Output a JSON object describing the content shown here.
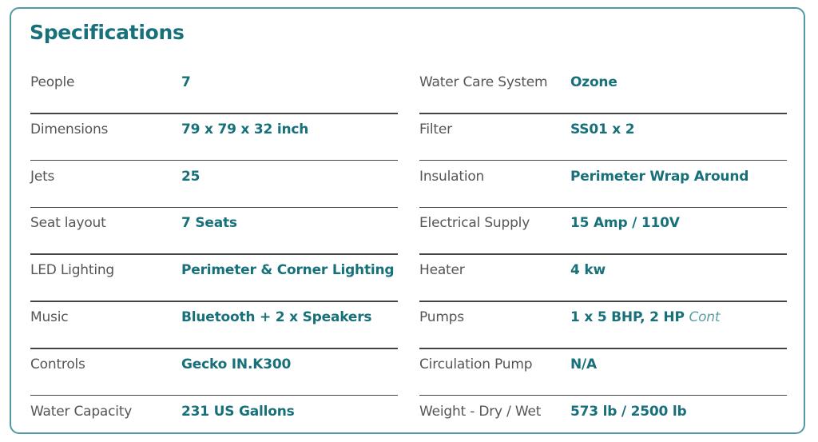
{
  "title": "Specifications",
  "left": [
    {
      "label": "People",
      "value": "7"
    },
    {
      "label": "Dimensions",
      "value": "79 x 79 x 32 inch"
    },
    {
      "label": "Jets",
      "value": "25"
    },
    {
      "label": "Seat layout",
      "value": "7 Seats"
    },
    {
      "label": "LED Lighting",
      "value": "Perimeter & Corner Lighting"
    },
    {
      "label": "Music",
      "value": "Bluetooth + 2 x Speakers"
    },
    {
      "label": "Controls",
      "value": "Gecko IN.K300"
    },
    {
      "label": "Water Capacity",
      "value": "231 US Gallons"
    }
  ],
  "right": [
    {
      "label": "Water Care System",
      "value": "Ozone"
    },
    {
      "label": "Filter",
      "value": "SS01 x 2"
    },
    {
      "label": "Insulation",
      "value": "Perimeter Wrap Around"
    },
    {
      "label": "Electrical Supply",
      "value": "15 Amp / 110V"
    },
    {
      "label": "Heater",
      "value": "4 kw"
    },
    {
      "label": "Pumps",
      "value": "1 x 5 BHP, 2 HP",
      "suffix": "Cont"
    },
    {
      "label": "Circulation Pump",
      "value": "N/A"
    },
    {
      "label": "Weight - Dry / Wet",
      "value": "573 lb / 2500 lb"
    }
  ]
}
